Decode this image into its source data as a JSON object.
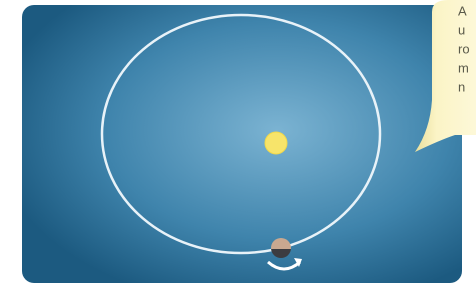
{
  "callout": {
    "lines": [
      "A",
      "u",
      "ro",
      "m",
      "n"
    ]
  }
}
